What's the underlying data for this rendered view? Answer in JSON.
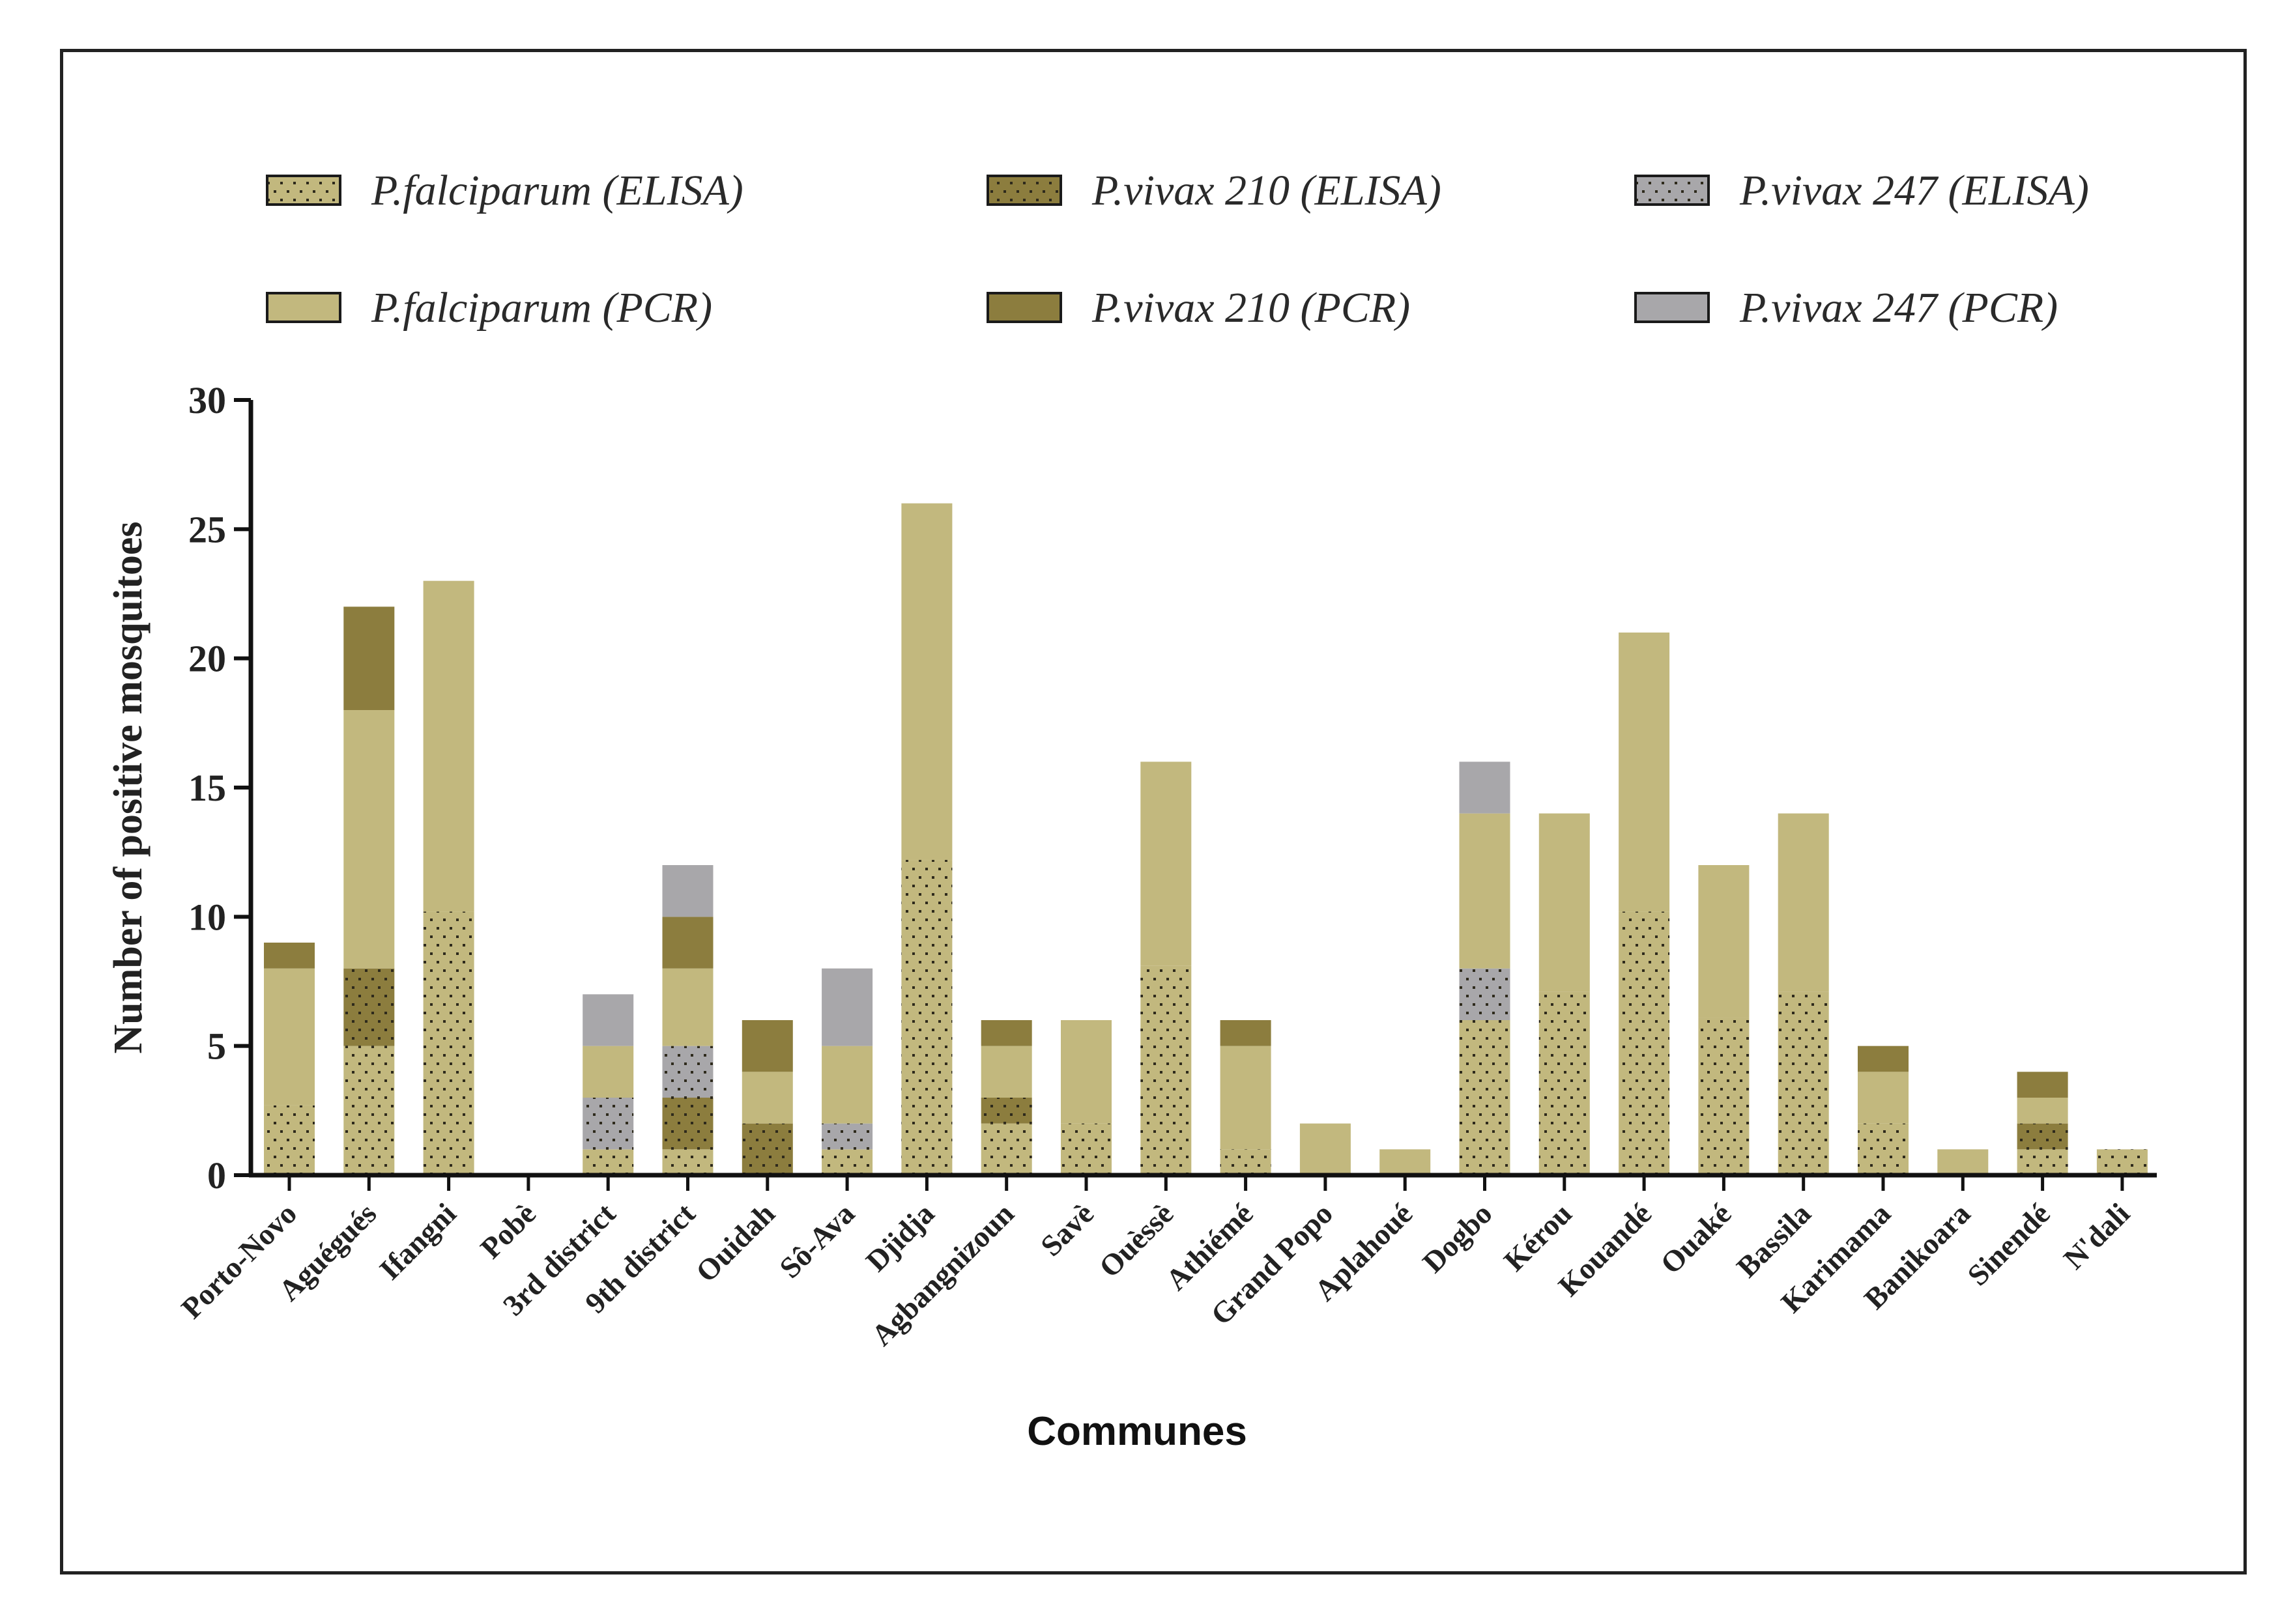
{
  "chart_data": {
    "type": "bar",
    "stacked": true,
    "title": "",
    "xlabel": "Communes",
    "ylabel": "Number of positive mosquitoes",
    "ylim": [
      0,
      30
    ],
    "yticks": [
      0,
      5,
      10,
      15,
      20,
      25,
      30
    ],
    "legend_position": "top",
    "categories": [
      "Porto-Novo",
      "Aguégués",
      "Ifangni",
      "Pobè",
      "3rd district",
      "9th district",
      "Ouidah",
      "Sô-Ava",
      "Djidja",
      "Agbangnizoun",
      "Savè",
      "Ouèssè",
      "Athiémé",
      "Grand Popo",
      "Aplahoué",
      "Dogbo",
      "Kérou",
      "Kouandé",
      "Ouaké",
      "Bassila",
      "Karimama",
      "Banikoara",
      "Sinendé",
      "N'dali"
    ],
    "series": [
      {
        "name": "P.falciparum (ELISA)",
        "color": "#c2b87e",
        "pattern": "dots",
        "values": [
          2.7,
          5,
          10.2,
          0,
          1,
          1,
          0,
          1,
          12.2,
          2,
          2,
          8.1,
          1,
          0,
          0,
          6,
          7.1,
          10.2,
          6.1,
          7.1,
          2,
          0,
          1,
          1
        ]
      },
      {
        "name": "P.vivax 210 (ELISA)",
        "color": "#8c7d3e",
        "pattern": "dots",
        "values": [
          0,
          3,
          0,
          0,
          0,
          2,
          2,
          0,
          0,
          1,
          0,
          0,
          0,
          0,
          0,
          0,
          0,
          0,
          0,
          0,
          0,
          0,
          1,
          0
        ]
      },
      {
        "name": "P.vivax 247 (ELISA)",
        "color": "#a8a7aa",
        "pattern": "dots",
        "values": [
          0,
          0,
          0,
          0,
          2,
          2,
          0,
          1,
          0,
          0,
          0,
          0,
          0,
          0,
          0,
          2,
          0,
          0,
          0,
          0,
          0,
          0,
          0,
          0
        ]
      },
      {
        "name": "P.falciparum (PCR)",
        "color": "#c2b87e",
        "pattern": "solid",
        "values": [
          5.3,
          10,
          12.8,
          0,
          2,
          3,
          2,
          3,
          13.8,
          2,
          4,
          7.9,
          4,
          2,
          1,
          6,
          6.9,
          10.8,
          5.9,
          6.9,
          2,
          1,
          1,
          0
        ]
      },
      {
        "name": "P.vivax 210 (PCR)",
        "color": "#8c7d3e",
        "pattern": "solid",
        "values": [
          1,
          4,
          0,
          0,
          0,
          2,
          2,
          0,
          0,
          1,
          0,
          0,
          1,
          0,
          0,
          0,
          0,
          0,
          0,
          0,
          1,
          0,
          1,
          0
        ]
      },
      {
        "name": "P.vivax 247 (PCR)",
        "color": "#a8a7aa",
        "pattern": "solid",
        "values": [
          0,
          0,
          0,
          0,
          2,
          2,
          0,
          3,
          0,
          0,
          0,
          0,
          0,
          0,
          0,
          2,
          0,
          0,
          0,
          0,
          0,
          0,
          0,
          0
        ]
      }
    ]
  }
}
